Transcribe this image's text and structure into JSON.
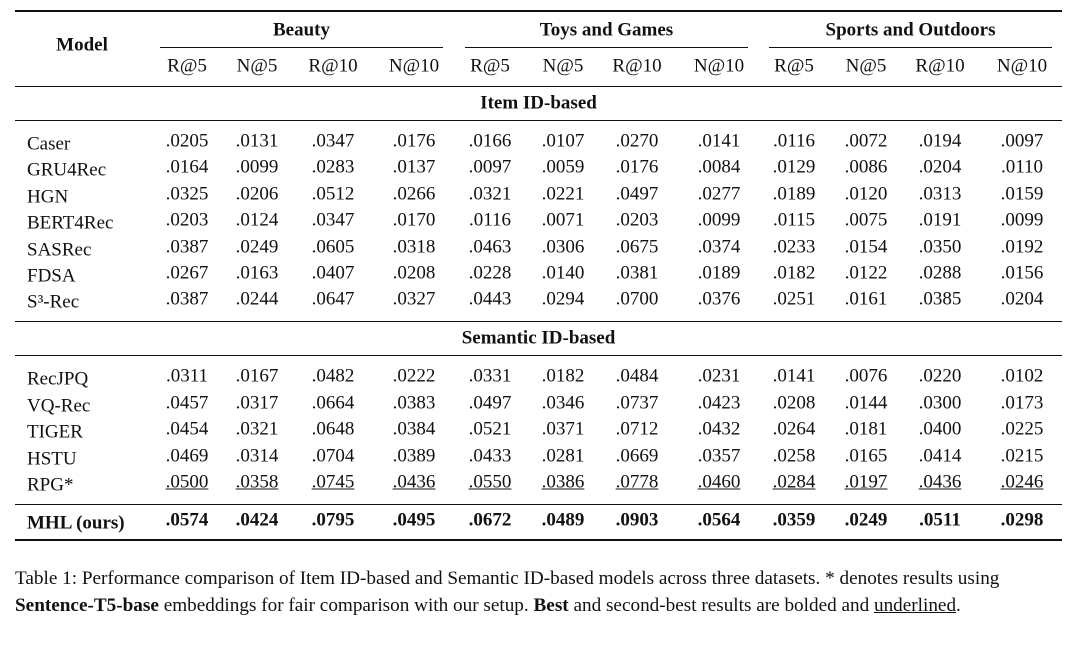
{
  "table": {
    "header": {
      "model": "Model",
      "groups": [
        {
          "name": "Beauty",
          "metrics": [
            "R@5",
            "N@5",
            "R@10",
            "N@10"
          ]
        },
        {
          "name": "Toys and Games",
          "metrics": [
            "R@5",
            "N@5",
            "R@10",
            "N@10"
          ]
        },
        {
          "name": "Sports and Outdoors",
          "metrics": [
            "R@5",
            "N@5",
            "R@10",
            "N@10"
          ]
        }
      ]
    },
    "sections": [
      {
        "title": "Item ID-based",
        "rows": [
          {
            "model": "Caser",
            "values": [
              ".0205",
              ".0131",
              ".0347",
              ".0176",
              ".0166",
              ".0107",
              ".0270",
              ".0141",
              ".0116",
              ".0072",
              ".0194",
              ".0097"
            ]
          },
          {
            "model": "GRU4Rec",
            "values": [
              ".0164",
              ".0099",
              ".0283",
              ".0137",
              ".0097",
              ".0059",
              ".0176",
              ".0084",
              ".0129",
              ".0086",
              ".0204",
              ".0110"
            ]
          },
          {
            "model": "HGN",
            "values": [
              ".0325",
              ".0206",
              ".0512",
              ".0266",
              ".0321",
              ".0221",
              ".0497",
              ".0277",
              ".0189",
              ".0120",
              ".0313",
              ".0159"
            ]
          },
          {
            "model": "BERT4Rec",
            "values": [
              ".0203",
              ".0124",
              ".0347",
              ".0170",
              ".0116",
              ".0071",
              ".0203",
              ".0099",
              ".0115",
              ".0075",
              ".0191",
              ".0099"
            ]
          },
          {
            "model": "SASRec",
            "values": [
              ".0387",
              ".0249",
              ".0605",
              ".0318",
              ".0463",
              ".0306",
              ".0675",
              ".0374",
              ".0233",
              ".0154",
              ".0350",
              ".0192"
            ]
          },
          {
            "model": "FDSA",
            "values": [
              ".0267",
              ".0163",
              ".0407",
              ".0208",
              ".0228",
              ".0140",
              ".0381",
              ".0189",
              ".0182",
              ".0122",
              ".0288",
              ".0156"
            ]
          },
          {
            "model": "S³-Rec",
            "values": [
              ".0387",
              ".0244",
              ".0647",
              ".0327",
              ".0443",
              ".0294",
              ".0700",
              ".0376",
              ".0251",
              ".0161",
              ".0385",
              ".0204"
            ]
          }
        ]
      },
      {
        "title": "Semantic ID-based",
        "rows": [
          {
            "model": "RecJPQ",
            "values": [
              ".0311",
              ".0167",
              ".0482",
              ".0222",
              ".0331",
              ".0182",
              ".0484",
              ".0231",
              ".0141",
              ".0076",
              ".0220",
              ".0102"
            ]
          },
          {
            "model": "VQ-Rec",
            "values": [
              ".0457",
              ".0317",
              ".0664",
              ".0383",
              ".0497",
              ".0346",
              ".0737",
              ".0423",
              ".0208",
              ".0144",
              ".0300",
              ".0173"
            ]
          },
          {
            "model": "TIGER",
            "values": [
              ".0454",
              ".0321",
              ".0648",
              ".0384",
              ".0521",
              ".0371",
              ".0712",
              ".0432",
              ".0264",
              ".0181",
              ".0400",
              ".0225"
            ]
          },
          {
            "model": "HSTU",
            "values": [
              ".0469",
              ".0314",
              ".0704",
              ".0389",
              ".0433",
              ".0281",
              ".0669",
              ".0357",
              ".0258",
              ".0165",
              ".0414",
              ".0215"
            ]
          },
          {
            "model": "RPG*",
            "style": "underline",
            "values": [
              ".0500",
              ".0358",
              ".0745",
              ".0436",
              ".0550",
              ".0386",
              ".0778",
              ".0460",
              ".0284",
              ".0197",
              ".0436",
              ".0246"
            ]
          }
        ]
      },
      {
        "rows": [
          {
            "model": "MHL (ours)",
            "style": "bold",
            "values": [
              ".0574",
              ".0424",
              ".0795",
              ".0495",
              ".0672",
              ".0489",
              ".0903",
              ".0564",
              ".0359",
              ".0249",
              ".0511",
              ".0298"
            ]
          }
        ]
      }
    ]
  },
  "caption": [
    {
      "text": "Table 1: Performance comparison of Item ID-based and Semantic ID-based models across three datasets. * denotes results using "
    },
    {
      "text": "Sentence-T5-base",
      "style": "bold"
    },
    {
      "text": " embeddings for fair comparison with our setup. "
    },
    {
      "text": "Best",
      "style": "bold"
    },
    {
      "text": " and second-best results are bolded and "
    },
    {
      "text": "underlined",
      "style": "underline"
    },
    {
      "text": "."
    }
  ]
}
